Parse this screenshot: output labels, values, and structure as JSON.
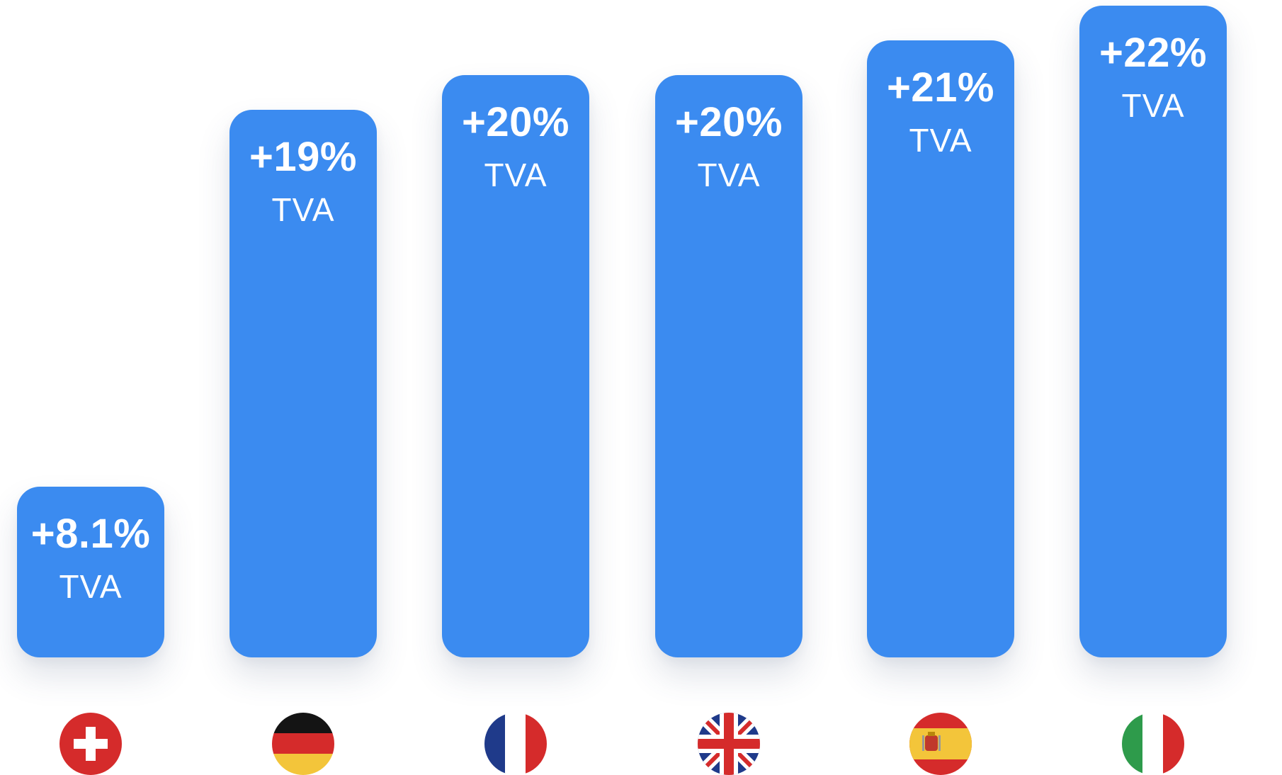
{
  "chart_data": {
    "type": "bar",
    "title": "",
    "xlabel": "",
    "ylabel": "",
    "categories": [
      "switzerland-flag",
      "germany-flag",
      "france-flag",
      "united-kingdom-flag",
      "spain-flag",
      "italy-flag"
    ],
    "values": [
      8.1,
      19,
      20,
      20,
      21,
      22
    ],
    "value_labels": [
      "+8.1%",
      "+19%",
      "+20%",
      "+20%",
      "+21%",
      "+22%"
    ],
    "unit_label": "TVA",
    "ylim": [
      0,
      22
    ],
    "grid": false,
    "legend": "none"
  },
  "colors": {
    "bar": "#3b8bf0",
    "label_text": "#ffffff",
    "background": "#ffffff"
  }
}
